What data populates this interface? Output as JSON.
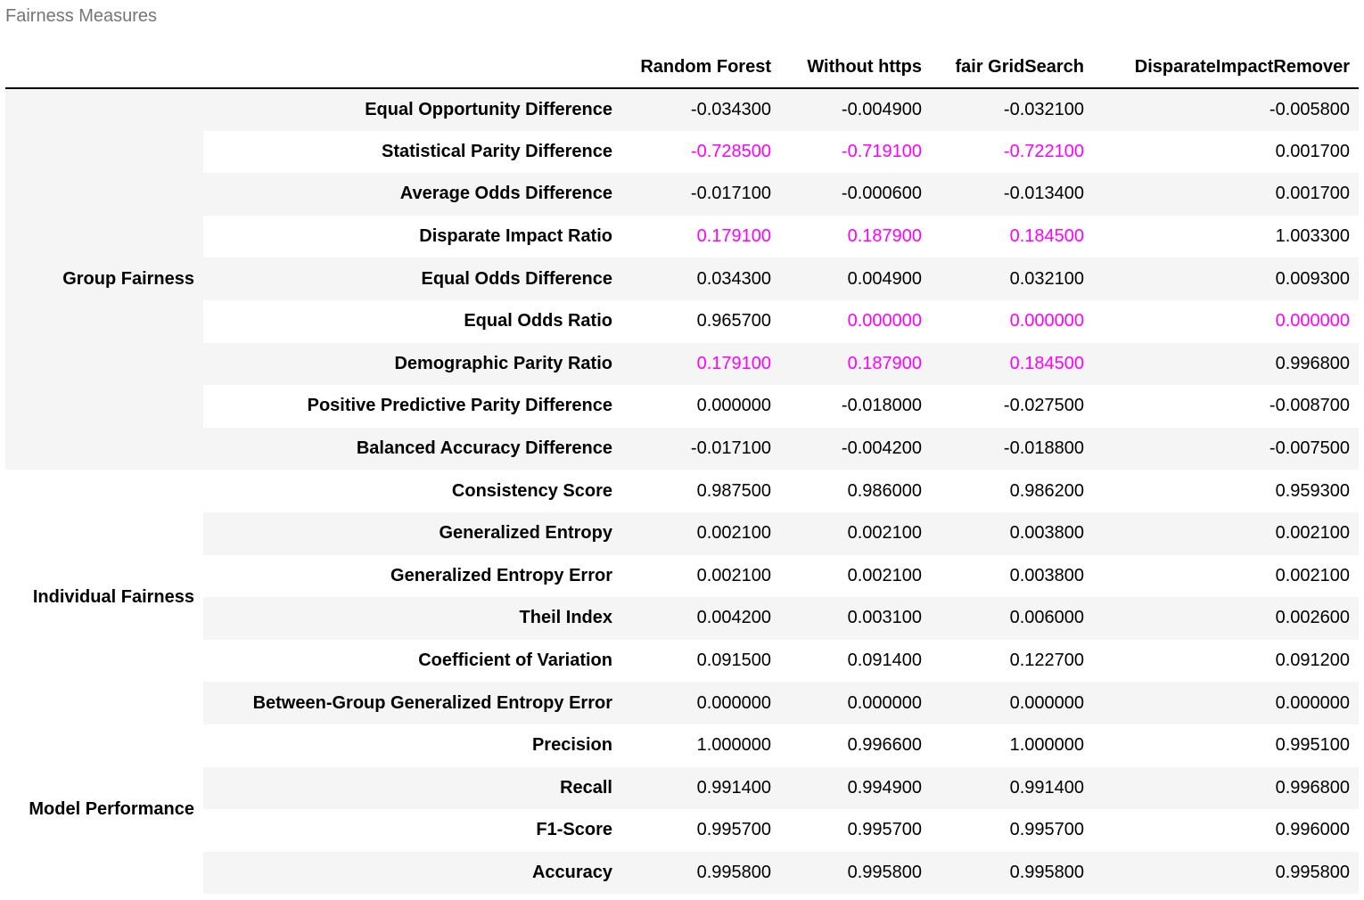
{
  "caption": "Fairness Measures",
  "highlight_color": "#ff00ff",
  "stripe_color": "#f5f5f5",
  "columns": [
    "Random Forest",
    "Without https",
    "fair GridSearch",
    "DisparateImpactRemover"
  ],
  "groups": [
    {
      "label": "Group Fairness",
      "rows": [
        {
          "metric": "Equal Opportunity Difference",
          "values": [
            "-0.034300",
            "-0.004900",
            "-0.032100",
            "-0.005800"
          ],
          "highlight": [
            false,
            false,
            false,
            false
          ]
        },
        {
          "metric": "Statistical Parity Difference",
          "values": [
            "-0.728500",
            "-0.719100",
            "-0.722100",
            "0.001700"
          ],
          "highlight": [
            true,
            true,
            true,
            false
          ]
        },
        {
          "metric": "Average Odds Difference",
          "values": [
            "-0.017100",
            "-0.000600",
            "-0.013400",
            "0.001700"
          ],
          "highlight": [
            false,
            false,
            false,
            false
          ]
        },
        {
          "metric": "Disparate Impact Ratio",
          "values": [
            "0.179100",
            "0.187900",
            "0.184500",
            "1.003300"
          ],
          "highlight": [
            true,
            true,
            true,
            false
          ]
        },
        {
          "metric": "Equal Odds Difference",
          "values": [
            "0.034300",
            "0.004900",
            "0.032100",
            "0.009300"
          ],
          "highlight": [
            false,
            false,
            false,
            false
          ]
        },
        {
          "metric": "Equal Odds Ratio",
          "values": [
            "0.965700",
            "0.000000",
            "0.000000",
            "0.000000"
          ],
          "highlight": [
            false,
            true,
            true,
            true
          ]
        },
        {
          "metric": "Demographic Parity Ratio",
          "values": [
            "0.179100",
            "0.187900",
            "0.184500",
            "0.996800"
          ],
          "highlight": [
            true,
            true,
            true,
            false
          ]
        },
        {
          "metric": "Positive Predictive Parity Difference",
          "values": [
            "0.000000",
            "-0.018000",
            "-0.027500",
            "-0.008700"
          ],
          "highlight": [
            false,
            false,
            false,
            false
          ]
        },
        {
          "metric": "Balanced Accuracy Difference",
          "values": [
            "-0.017100",
            "-0.004200",
            "-0.018800",
            "-0.007500"
          ],
          "highlight": [
            false,
            false,
            false,
            false
          ]
        }
      ]
    },
    {
      "label": "Individual Fairness",
      "rows": [
        {
          "metric": "Consistency Score",
          "values": [
            "0.987500",
            "0.986000",
            "0.986200",
            "0.959300"
          ],
          "highlight": [
            false,
            false,
            false,
            false
          ]
        },
        {
          "metric": "Generalized Entropy",
          "values": [
            "0.002100",
            "0.002100",
            "0.003800",
            "0.002100"
          ],
          "highlight": [
            false,
            false,
            false,
            false
          ]
        },
        {
          "metric": "Generalized Entropy Error",
          "values": [
            "0.002100",
            "0.002100",
            "0.003800",
            "0.002100"
          ],
          "highlight": [
            false,
            false,
            false,
            false
          ]
        },
        {
          "metric": "Theil Index",
          "values": [
            "0.004200",
            "0.003100",
            "0.006000",
            "0.002600"
          ],
          "highlight": [
            false,
            false,
            false,
            false
          ]
        },
        {
          "metric": "Coefficient of Variation",
          "values": [
            "0.091500",
            "0.091400",
            "0.122700",
            "0.091200"
          ],
          "highlight": [
            false,
            false,
            false,
            false
          ]
        },
        {
          "metric": "Between-Group Generalized Entropy Error",
          "values": [
            "0.000000",
            "0.000000",
            "0.000000",
            "0.000000"
          ],
          "highlight": [
            false,
            false,
            false,
            false
          ]
        }
      ]
    },
    {
      "label": "Model Performance",
      "rows": [
        {
          "metric": "Precision",
          "values": [
            "1.000000",
            "0.996600",
            "1.000000",
            "0.995100"
          ],
          "highlight": [
            false,
            false,
            false,
            false
          ]
        },
        {
          "metric": "Recall",
          "values": [
            "0.991400",
            "0.994900",
            "0.991400",
            "0.996800"
          ],
          "highlight": [
            false,
            false,
            false,
            false
          ]
        },
        {
          "metric": "F1-Score",
          "values": [
            "0.995700",
            "0.995700",
            "0.995700",
            "0.996000"
          ],
          "highlight": [
            false,
            false,
            false,
            false
          ]
        },
        {
          "metric": "Accuracy",
          "values": [
            "0.995800",
            "0.995800",
            "0.995800",
            "0.995800"
          ],
          "highlight": [
            false,
            false,
            false,
            false
          ]
        }
      ]
    }
  ]
}
